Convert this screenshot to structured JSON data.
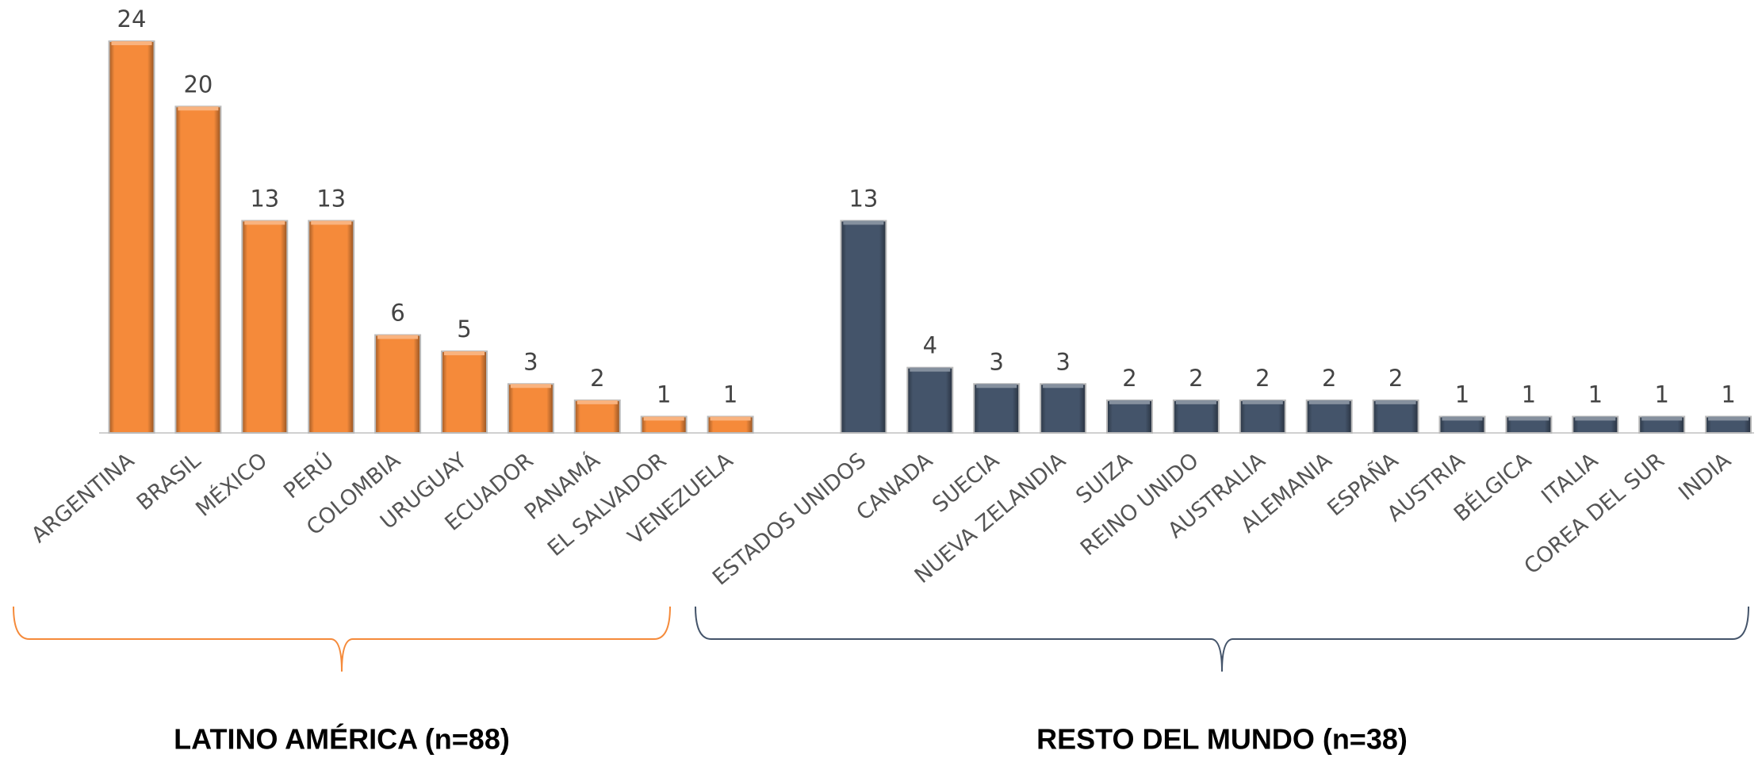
{
  "chart_data": {
    "type": "bar",
    "categories": [
      "ARGENTINA",
      "BRASIL",
      "MÉXICO",
      "PERÚ",
      "COLOMBIA",
      "URUGUAY",
      "ECUADOR",
      "PANAMÁ",
      "EL SALVADOR",
      "VENEZUELA",
      null,
      "ESTADOS UNIDOS",
      "CANADA",
      "SUECIA",
      "NUEVA ZELANDIA",
      "SUIZA",
      "REINO UNIDO",
      "AUSTRALIA",
      "ALEMANIA",
      "ESPAÑA",
      "AUSTRIA",
      "BÉLGICA",
      "ITALIA",
      "COREA DEL SUR",
      "INDIA"
    ],
    "series": [
      {
        "name": "LATINO AMÉRICA (n=88)",
        "color": "#f58a3a",
        "values": [
          24,
          20,
          13,
          13,
          6,
          5,
          3,
          2,
          1,
          1,
          null,
          null,
          null,
          null,
          null,
          null,
          null,
          null,
          null,
          null,
          null,
          null,
          null,
          null,
          null
        ]
      },
      {
        "name": "RESTO DEL MUNDO (n=38)",
        "color": "#44546a",
        "values": [
          null,
          null,
          null,
          null,
          null,
          null,
          null,
          null,
          null,
          null,
          null,
          13,
          4,
          3,
          3,
          2,
          2,
          2,
          2,
          2,
          1,
          1,
          1,
          1,
          1
        ]
      }
    ]
  }
}
